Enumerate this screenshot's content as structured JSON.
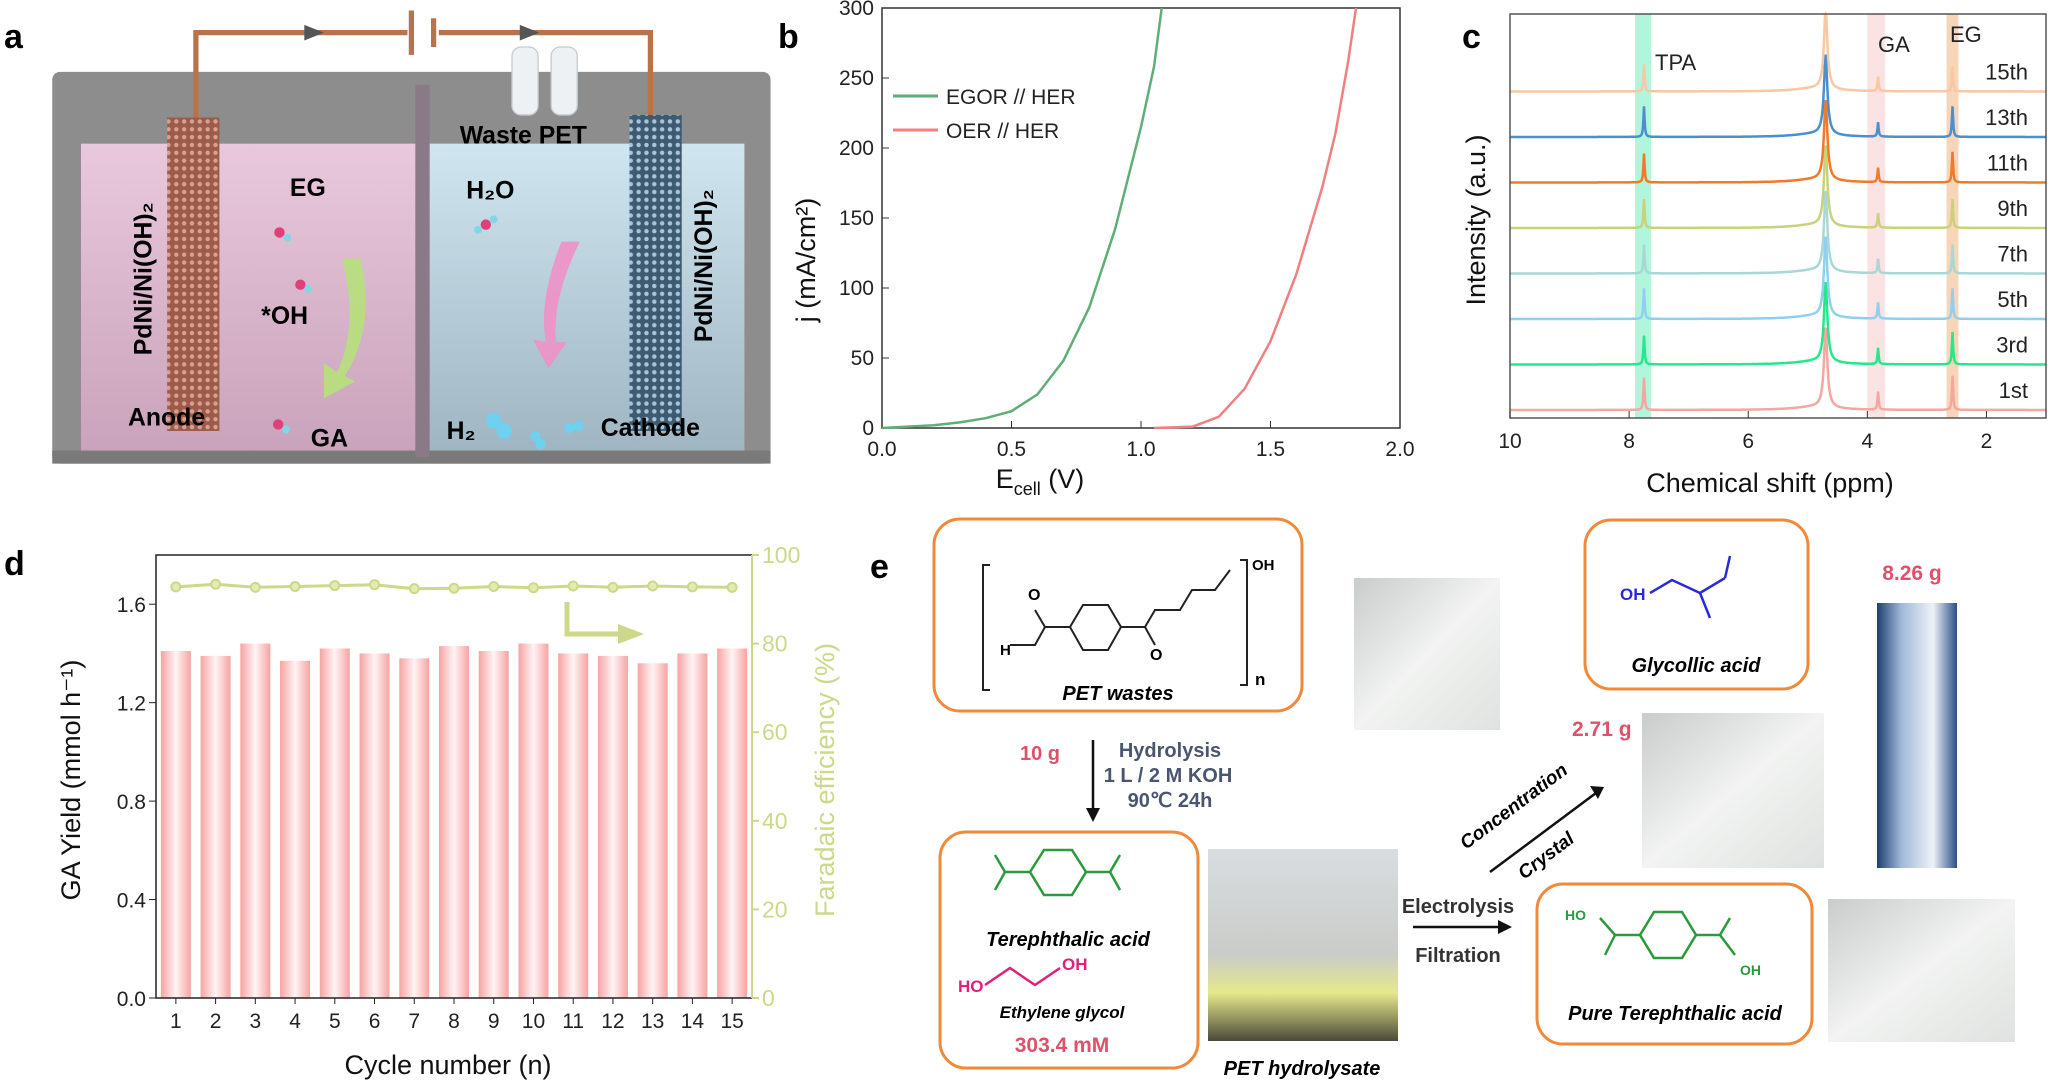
{
  "panel_labels": {
    "a": "a",
    "b": "b",
    "c": "c",
    "d": "d",
    "e": "e"
  },
  "panel_a": {
    "anode_electrode": "PdNi/Ni(OH)₂",
    "cathode_electrode": "PdNi/Ni(OH)₂",
    "waste_pet": "Waste PET",
    "eg": "EG",
    "oh": "*OH",
    "ga": "GA",
    "h2o": "H₂O",
    "h2": "H₂",
    "anode": "Anode",
    "cathode": "Cathode",
    "colors": {
      "anode_electrolyte": "#d9b6cf",
      "cathode_electrolyte": "#b8cdd8",
      "wire": "#b8734a"
    }
  },
  "chart_data": [
    {
      "panel": "b",
      "type": "line",
      "xlabel_main": "E",
      "xlabel_sub": "cell",
      "xlabel_unit": " (V)",
      "ylabel": "j (mA/cm²)",
      "xlim": [
        0.0,
        2.0
      ],
      "ylim": [
        0,
        300
      ],
      "xticks": [
        "0.0",
        "0.5",
        "1.0",
        "1.5",
        "2.0"
      ],
      "yticks": [
        "0",
        "50",
        "100",
        "150",
        "200",
        "250",
        "300"
      ],
      "legend_position": "top-left",
      "series": [
        {
          "name": "EGOR // HER",
          "color": "#5fae78",
          "x": [
            0.0,
            0.1,
            0.2,
            0.3,
            0.4,
            0.5,
            0.6,
            0.7,
            0.8,
            0.9,
            1.0,
            1.05,
            1.08
          ],
          "y": [
            0,
            1,
            2,
            4,
            7,
            12,
            24,
            48,
            86,
            142,
            215,
            258,
            300
          ]
        },
        {
          "name": "OER // HER",
          "color": "#f08080",
          "x": [
            1.05,
            1.2,
            1.3,
            1.4,
            1.5,
            1.6,
            1.7,
            1.75,
            1.8,
            1.83
          ],
          "y": [
            0,
            1,
            8,
            28,
            62,
            110,
            172,
            210,
            262,
            300
          ]
        }
      ]
    },
    {
      "panel": "c",
      "type": "line",
      "xlabel": "Chemical shift (ppm)",
      "ylabel": "Intensity (a.u.)",
      "xlim": [
        10,
        1
      ],
      "xticks": [
        "10",
        "8",
        "6",
        "4",
        "2"
      ],
      "bands": [
        {
          "label": "TPA",
          "from": 7.9,
          "to": 7.63,
          "color": "#7cf0c4"
        },
        {
          "label": "GA",
          "from": 4.0,
          "to": 3.7,
          "color": "#f8cfd0"
        },
        {
          "label": "EG",
          "from": 2.67,
          "to": 2.47,
          "color": "#f2b98a"
        }
      ],
      "peaks_ppm": [
        7.75,
        4.7,
        3.82,
        2.57
      ],
      "series": [
        {
          "name": "1st",
          "color": "#f4a6a0",
          "heights": [
            0.9,
            1.0,
            0.5,
            0.95
          ]
        },
        {
          "name": "3rd",
          "color": "#25e88a",
          "heights": [
            0.8,
            1.0,
            0.45,
            0.9
          ]
        },
        {
          "name": "5th",
          "color": "#8fd0f2",
          "heights": [
            0.85,
            1.0,
            0.45,
            0.85
          ]
        },
        {
          "name": "7th",
          "color": "#a8d8d4",
          "heights": [
            0.8,
            1.0,
            0.4,
            0.8
          ]
        },
        {
          "name": "9th",
          "color": "#c9d27a",
          "heights": [
            0.8,
            1.0,
            0.4,
            0.8
          ]
        },
        {
          "name": "11th",
          "color": "#f07a2a",
          "heights": [
            0.8,
            1.0,
            0.4,
            0.85
          ]
        },
        {
          "name": "13th",
          "color": "#4a8fd0",
          "heights": [
            0.85,
            1.0,
            0.4,
            0.85
          ]
        },
        {
          "name": "15th",
          "color": "#f8c7a3",
          "heights": [
            0.75,
            1.0,
            0.4,
            0.7
          ]
        }
      ]
    },
    {
      "panel": "d",
      "type": "bar",
      "xlabel": "Cycle number (n)",
      "ylabel": "GA Yield (mmol h⁻¹)",
      "y2label": "Faradaic efficiency (%)",
      "categories": [
        "1",
        "2",
        "3",
        "4",
        "5",
        "6",
        "7",
        "8",
        "9",
        "10",
        "11",
        "12",
        "13",
        "14",
        "15"
      ],
      "ylim": [
        0,
        1.8
      ],
      "y2lim": [
        0,
        100
      ],
      "yticks": [
        "0.0",
        "0.4",
        "0.8",
        "1.2",
        "1.6"
      ],
      "y2ticks": [
        "0",
        "20",
        "40",
        "60",
        "80",
        "100"
      ],
      "series": [
        {
          "name": "GA Yield",
          "axis": "left",
          "color": "#f7a8a8",
          "values": [
            1.41,
            1.39,
            1.44,
            1.37,
            1.42,
            1.4,
            1.38,
            1.43,
            1.41,
            1.44,
            1.4,
            1.39,
            1.36,
            1.4,
            1.42
          ]
        },
        {
          "name": "Faradaic efficiency",
          "axis": "right",
          "color": "#cdd88a",
          "values": [
            92.8,
            93.4,
            92.7,
            92.9,
            93.1,
            93.3,
            92.4,
            92.5,
            92.9,
            92.6,
            93.0,
            92.7,
            93.0,
            92.8,
            92.7
          ]
        }
      ]
    }
  ],
  "panel_e": {
    "pet_wastes": "PET wastes",
    "pet_n": "n",
    "pet_oh": "OH",
    "pet_h": "H",
    "mass_in": "10 g",
    "hydrolysis": "Hydrolysis",
    "hydrolysis_conditions": "1 L / 2 M KOH",
    "hydrolysis_temp": "90℃ 24h",
    "terephthalic_acid": "Terephthalic acid",
    "ethylene_glycol": "Ethylene glycol",
    "eg_ho": "HO",
    "eg_oh": "OH",
    "concentration_value": "303.4 mM",
    "pet_hydrolysate": "PET hydrolysate",
    "electrolysis": "Electrolysis",
    "filtration": "Filtration",
    "pure_tpa": "Pure Terephthalic acid",
    "tpa_ho": "HO",
    "tpa_oh": "OH",
    "concentration": "Concentration",
    "crystal": "Crystal",
    "crystal_mass": "2.71 g",
    "glycollic_acid": "Glycollic acid",
    "ga_oh": "OH",
    "ga_mass": "8.26 g",
    "colors": {
      "box": "#f08a3a",
      "highlight": "#e0506a",
      "condition": "#4a5670",
      "tpa": "#2a9a3a",
      "eg": "#e0207a",
      "ga": "#2a2ad8"
    }
  }
}
